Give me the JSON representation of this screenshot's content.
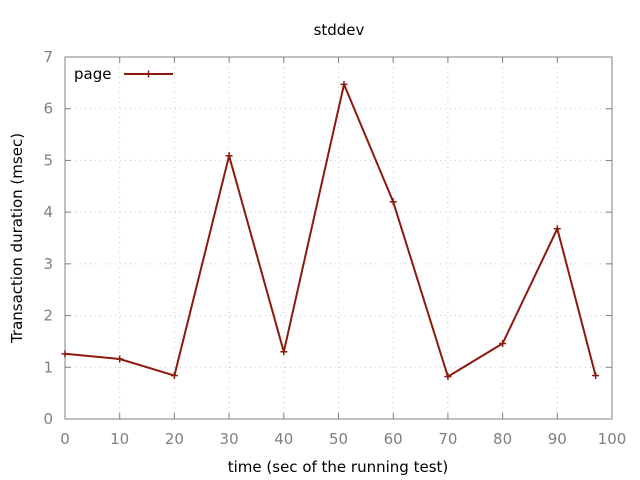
{
  "chart_data": {
    "type": "line",
    "title": "stddev",
    "xlabel": "time (sec of the running test)",
    "ylabel": "Transaction duration (msec)",
    "xlim": [
      0,
      100
    ],
    "ylim": [
      0,
      7
    ],
    "x_ticks": [
      0,
      10,
      20,
      30,
      40,
      50,
      60,
      70,
      80,
      90,
      100
    ],
    "y_ticks": [
      0,
      1,
      2,
      3,
      4,
      5,
      6,
      7
    ],
    "grid": true,
    "legend_position": "top-left",
    "series": [
      {
        "name": "page",
        "color": "#8b1a0e",
        "marker": "plus",
        "x": [
          0,
          10,
          20,
          30,
          40,
          51,
          60,
          70,
          80,
          90,
          97
        ],
        "y": [
          1.26,
          1.16,
          0.84,
          5.09,
          1.3,
          6.47,
          4.2,
          0.82,
          1.46,
          3.68,
          0.84
        ]
      }
    ]
  }
}
